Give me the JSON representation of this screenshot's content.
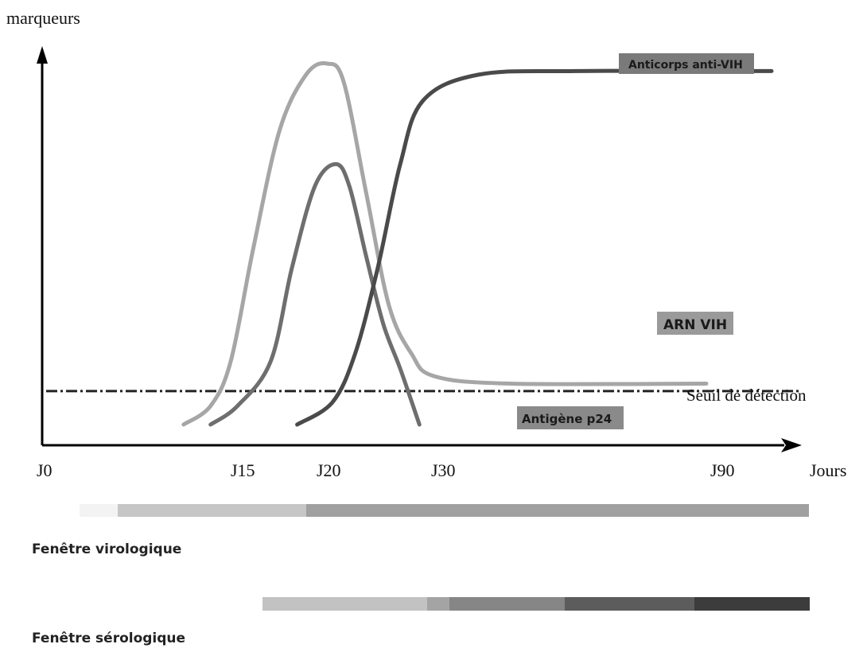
{
  "chart_data": {
    "type": "line",
    "ylabel": "marqueurs",
    "xlabel": "Jours",
    "x_tick_labels": [
      "J0",
      "J15",
      "J20",
      "J30",
      "J90"
    ],
    "threshold_label": "Seuil de détection",
    "series": [
      {
        "name": "ARN VIH",
        "color": "#a6a6a6",
        "points": [
          [
            10.5,
            0.03
          ],
          [
            12.5,
            0.08
          ],
          [
            14,
            0.2
          ],
          [
            15.5,
            0.5
          ],
          [
            17,
            0.82
          ],
          [
            18.5,
            0.97
          ],
          [
            19.7,
            1.0
          ],
          [
            21,
            0.95
          ],
          [
            23,
            0.65
          ],
          [
            25,
            0.35
          ],
          [
            27,
            0.22
          ],
          [
            29,
            0.16
          ],
          [
            32,
            0.14
          ],
          [
            38,
            0.14
          ]
        ]
      },
      {
        "name": "Antigène p24",
        "color": "#6e6e6e",
        "points": [
          [
            12.5,
            0.03
          ],
          [
            14.5,
            0.08
          ],
          [
            16.5,
            0.2
          ],
          [
            17.7,
            0.45
          ],
          [
            19,
            0.67
          ],
          [
            20.3,
            0.73
          ],
          [
            21.5,
            0.67
          ],
          [
            23,
            0.48
          ],
          [
            24.5,
            0.3
          ],
          [
            26,
            0.18
          ],
          [
            27.7,
            0.03
          ]
        ]
      },
      {
        "name": "Anticorps anti-VIH",
        "color": "#4a4a4a",
        "points": [
          [
            18,
            0.03
          ],
          [
            20,
            0.09
          ],
          [
            22,
            0.22
          ],
          [
            24,
            0.45
          ],
          [
            26,
            0.73
          ],
          [
            28,
            0.9
          ],
          [
            31,
            0.97
          ],
          [
            34,
            0.98
          ],
          [
            40,
            0.98
          ]
        ]
      }
    ],
    "threshold": 0.12,
    "grid": false
  },
  "windows": {
    "virological": {
      "label": "Fenêtre virologique",
      "bands": [
        "#f3f3f3",
        "#c6c6c6",
        "#a0a0a0"
      ]
    },
    "serological": {
      "label": "Fenêtre sérologique",
      "bands": [
        "#c2c2c2",
        "#a4a4a4",
        "#868686",
        "#5c5c5c",
        "#3c3c3c"
      ]
    }
  }
}
